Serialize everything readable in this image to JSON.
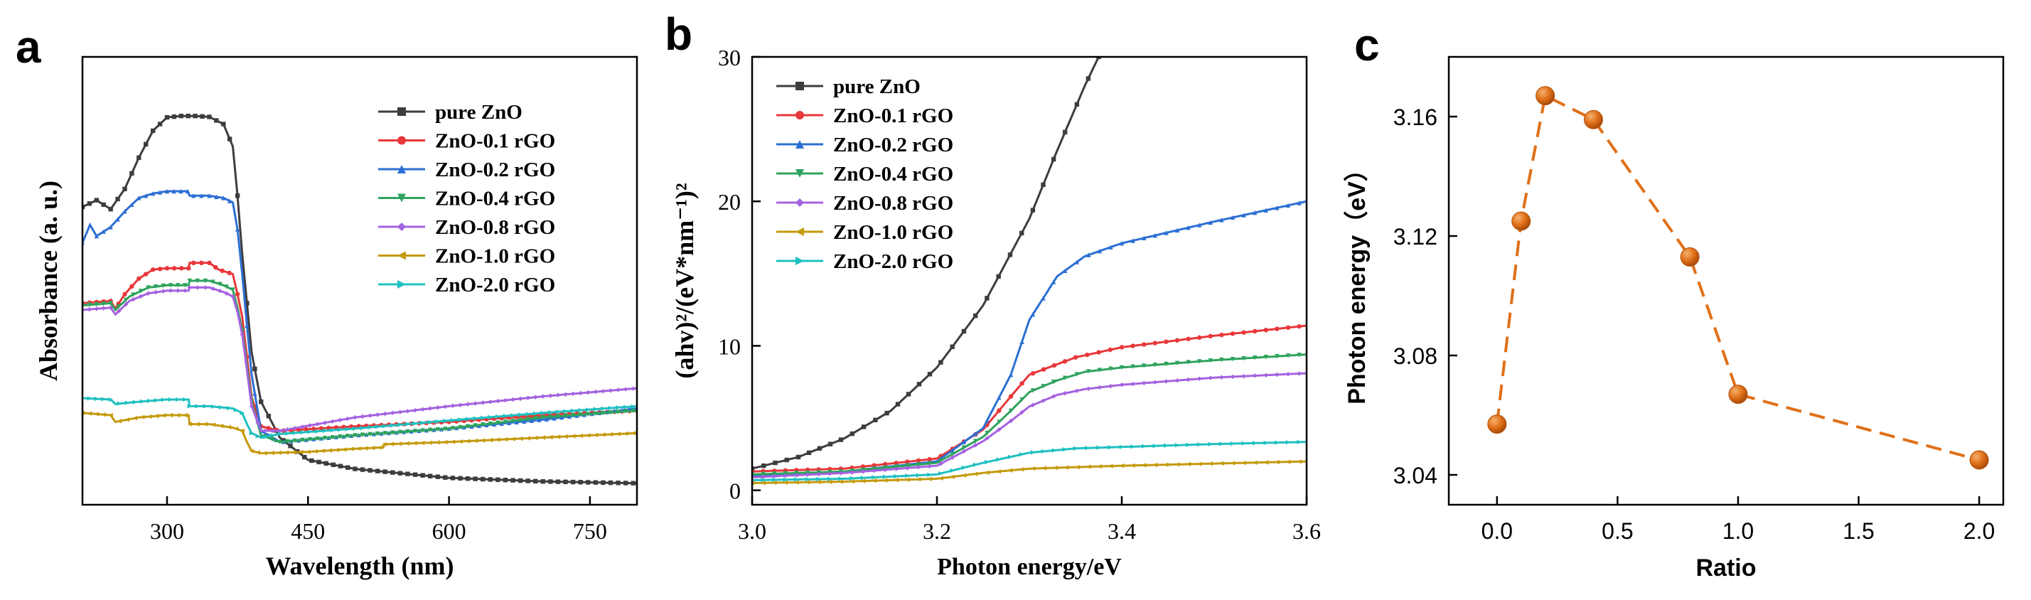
{
  "chart_data": [
    {
      "panel_label": "a",
      "type": "line",
      "xlabel": "Wavelength (nm)",
      "ylabel": "Absorbance (a. u.)",
      "xlim": [
        210,
        800
      ],
      "ylim": [
        0,
        1.0
      ],
      "x_ticks": [
        300,
        450,
        600,
        750
      ],
      "y_ticks_shown": false,
      "legend_position": "top-right",
      "series": [
        {
          "name": "pure ZnO",
          "color": "#3d3d3d",
          "marker": "square",
          "points": [
            [
              210,
              0.665
            ],
            [
              225,
              0.68
            ],
            [
              240,
              0.66
            ],
            [
              255,
              0.705
            ],
            [
              270,
              0.775
            ],
            [
              285,
              0.835
            ],
            [
              300,
              0.865
            ],
            [
              315,
              0.868
            ],
            [
              330,
              0.868
            ],
            [
              345,
              0.866
            ],
            [
              360,
              0.85
            ],
            [
              370,
              0.8
            ],
            [
              375,
              0.69
            ],
            [
              380,
              0.56
            ],
            [
              385,
              0.45
            ],
            [
              390,
              0.34
            ],
            [
              400,
              0.23
            ],
            [
              420,
              0.15
            ],
            [
              450,
              0.1
            ],
            [
              500,
              0.08
            ],
            [
              600,
              0.06
            ],
            [
              700,
              0.052
            ],
            [
              800,
              0.048
            ]
          ]
        },
        {
          "name": "ZnO-0.1 rGO",
          "color": "#e8373a",
          "marker": "circle",
          "points": [
            [
              210,
              0.45
            ],
            [
              240,
              0.455
            ],
            [
              245,
              0.438
            ],
            [
              255,
              0.47
            ],
            [
              270,
              0.505
            ],
            [
              285,
              0.525
            ],
            [
              300,
              0.528
            ],
            [
              323,
              0.528
            ],
            [
              324,
              0.54
            ],
            [
              345,
              0.54
            ],
            [
              355,
              0.525
            ],
            [
              370,
              0.515
            ],
            [
              375,
              0.47
            ],
            [
              380,
              0.42
            ],
            [
              385,
              0.33
            ],
            [
              390,
              0.24
            ],
            [
              400,
              0.175
            ],
            [
              420,
              0.165
            ],
            [
              500,
              0.175
            ],
            [
              600,
              0.185
            ],
            [
              700,
              0.2
            ],
            [
              800,
              0.21
            ]
          ]
        },
        {
          "name": "ZnO-0.2 rGO",
          "color": "#2c6fd4",
          "marker": "triangle-up",
          "points": [
            [
              210,
              0.585
            ],
            [
              218,
              0.625
            ],
            [
              225,
              0.6
            ],
            [
              240,
              0.62
            ],
            [
              255,
              0.655
            ],
            [
              270,
              0.685
            ],
            [
              285,
              0.695
            ],
            [
              300,
              0.7
            ],
            [
              322,
              0.7
            ],
            [
              324,
              0.69
            ],
            [
              345,
              0.69
            ],
            [
              360,
              0.685
            ],
            [
              370,
              0.675
            ],
            [
              375,
              0.615
            ],
            [
              380,
              0.515
            ],
            [
              385,
              0.4
            ],
            [
              390,
              0.29
            ],
            [
              400,
              0.165
            ],
            [
              420,
              0.14
            ],
            [
              500,
              0.155
            ],
            [
              600,
              0.17
            ],
            [
              700,
              0.19
            ],
            [
              800,
              0.215
            ]
          ]
        },
        {
          "name": "ZnO-0.4 rGO",
          "color": "#2ea35c",
          "marker": "triangle-down",
          "points": [
            [
              210,
              0.445
            ],
            [
              240,
              0.45
            ],
            [
              245,
              0.435
            ],
            [
              260,
              0.465
            ],
            [
              280,
              0.485
            ],
            [
              300,
              0.49
            ],
            [
              323,
              0.49
            ],
            [
              324,
              0.5
            ],
            [
              345,
              0.5
            ],
            [
              360,
              0.49
            ],
            [
              370,
              0.48
            ],
            [
              375,
              0.44
            ],
            [
              380,
              0.39
            ],
            [
              385,
              0.31
            ],
            [
              390,
              0.23
            ],
            [
              400,
              0.155
            ],
            [
              420,
              0.14
            ],
            [
              500,
              0.155
            ],
            [
              600,
              0.17
            ],
            [
              700,
              0.195
            ],
            [
              800,
              0.21
            ]
          ]
        },
        {
          "name": "ZnO-0.8 rGO",
          "color": "#a562e0",
          "marker": "diamond",
          "points": [
            [
              210,
              0.435
            ],
            [
              240,
              0.44
            ],
            [
              245,
              0.425
            ],
            [
              260,
              0.455
            ],
            [
              280,
              0.472
            ],
            [
              300,
              0.478
            ],
            [
              323,
              0.478
            ],
            [
              324,
              0.485
            ],
            [
              345,
              0.485
            ],
            [
              360,
              0.475
            ],
            [
              370,
              0.465
            ],
            [
              375,
              0.43
            ],
            [
              380,
              0.38
            ],
            [
              385,
              0.3
            ],
            [
              390,
              0.22
            ],
            [
              400,
              0.165
            ],
            [
              420,
              0.165
            ],
            [
              500,
              0.195
            ],
            [
              600,
              0.22
            ],
            [
              700,
              0.242
            ],
            [
              800,
              0.26
            ]
          ]
        },
        {
          "name": "ZnO-1.0 rGO",
          "color": "#c49a0c",
          "marker": "left-triangle",
          "points": [
            [
              210,
              0.205
            ],
            [
              240,
              0.2
            ],
            [
              245,
              0.185
            ],
            [
              270,
              0.195
            ],
            [
              300,
              0.2
            ],
            [
              323,
              0.2
            ],
            [
              324,
              0.18
            ],
            [
              345,
              0.18
            ],
            [
              370,
              0.172
            ],
            [
              380,
              0.165
            ],
            [
              385,
              0.14
            ],
            [
              390,
              0.12
            ],
            [
              400,
              0.115
            ],
            [
              450,
              0.118
            ],
            [
              500,
              0.125
            ],
            [
              530,
              0.128
            ],
            [
              531,
              0.135
            ],
            [
              600,
              0.14
            ],
            [
              700,
              0.15
            ],
            [
              800,
              0.16
            ]
          ]
        },
        {
          "name": "ZnO-2.0 rGO",
          "color": "#1fc0c0",
          "marker": "right-triangle",
          "points": [
            [
              210,
              0.238
            ],
            [
              240,
              0.235
            ],
            [
              245,
              0.225
            ],
            [
              270,
              0.23
            ],
            [
              300,
              0.235
            ],
            [
              323,
              0.235
            ],
            [
              324,
              0.22
            ],
            [
              345,
              0.22
            ],
            [
              370,
              0.215
            ],
            [
              380,
              0.205
            ],
            [
              385,
              0.18
            ],
            [
              390,
              0.16
            ],
            [
              400,
              0.15
            ],
            [
              420,
              0.158
            ],
            [
              500,
              0.17
            ],
            [
              600,
              0.188
            ],
            [
              700,
              0.205
            ],
            [
              800,
              0.22
            ]
          ]
        }
      ]
    },
    {
      "panel_label": "b",
      "type": "line",
      "xlabel": "Photon energy/eV",
      "ylabel": "(ahv)²/(eV*nm⁻¹)²",
      "xlim": [
        3.0,
        3.6
      ],
      "ylim": [
        -1,
        30
      ],
      "x_ticks": [
        3.0,
        3.2,
        3.4,
        3.6
      ],
      "x_tick_labels": [
        "3.0",
        "3.2",
        "3.4",
        "3.6"
      ],
      "y_ticks": [
        0,
        10,
        20,
        30
      ],
      "legend_position": "top-left",
      "series": [
        {
          "name": "pure ZnO",
          "color": "#3d3d3d",
          "marker": "square",
          "points": [
            [
              3.0,
              1.5
            ],
            [
              3.05,
              2.3
            ],
            [
              3.1,
              3.6
            ],
            [
              3.15,
              5.5
            ],
            [
              3.2,
              8.5
            ],
            [
              3.25,
              12.8
            ],
            [
              3.3,
              18.8
            ],
            [
              3.33,
              23.5
            ],
            [
              3.36,
              28.0
            ],
            [
              3.375,
              30.0
            ]
          ]
        },
        {
          "name": "ZnO-0.1 rGO",
          "color": "#e8373a",
          "marker": "circle",
          "points": [
            [
              3.0,
              1.3
            ],
            [
              3.1,
              1.5
            ],
            [
              3.2,
              2.2
            ],
            [
              3.25,
              4.2
            ],
            [
              3.28,
              6.5
            ],
            [
              3.3,
              8.0
            ],
            [
              3.35,
              9.2
            ],
            [
              3.4,
              9.9
            ],
            [
              3.5,
              10.7
            ],
            [
              3.6,
              11.4
            ]
          ]
        },
        {
          "name": "ZnO-0.2 rGO",
          "color": "#2c6fd4",
          "marker": "triangle-up",
          "points": [
            [
              3.0,
              1.0
            ],
            [
              3.1,
              1.3
            ],
            [
              3.2,
              2.0
            ],
            [
              3.25,
              4.3
            ],
            [
              3.28,
              8.0
            ],
            [
              3.3,
              11.8
            ],
            [
              3.33,
              14.8
            ],
            [
              3.36,
              16.2
            ],
            [
              3.4,
              17.1
            ],
            [
              3.5,
              18.6
            ],
            [
              3.6,
              20.0
            ]
          ]
        },
        {
          "name": "ZnO-0.4 rGO",
          "color": "#2ea35c",
          "marker": "triangle-down",
          "points": [
            [
              3.0,
              1.1
            ],
            [
              3.1,
              1.3
            ],
            [
              3.2,
              1.9
            ],
            [
              3.25,
              3.7
            ],
            [
              3.28,
              5.5
            ],
            [
              3.3,
              6.8
            ],
            [
              3.33,
              7.6
            ],
            [
              3.36,
              8.2
            ],
            [
              3.4,
              8.5
            ],
            [
              3.5,
              9.0
            ],
            [
              3.6,
              9.4
            ]
          ]
        },
        {
          "name": "ZnO-0.8 rGO",
          "color": "#a562e0",
          "marker": "diamond",
          "points": [
            [
              3.0,
              0.9
            ],
            [
              3.1,
              1.2
            ],
            [
              3.2,
              1.7
            ],
            [
              3.25,
              3.4
            ],
            [
              3.28,
              4.8
            ],
            [
              3.3,
              5.8
            ],
            [
              3.33,
              6.6
            ],
            [
              3.36,
              7.0
            ],
            [
              3.4,
              7.3
            ],
            [
              3.5,
              7.8
            ],
            [
              3.6,
              8.1
            ]
          ]
        },
        {
          "name": "ZnO-1.0 rGO",
          "color": "#c49a0c",
          "marker": "left-triangle",
          "points": [
            [
              3.0,
              0.5
            ],
            [
              3.1,
              0.6
            ],
            [
              3.2,
              0.8
            ],
            [
              3.25,
              1.2
            ],
            [
              3.3,
              1.5
            ],
            [
              3.4,
              1.7
            ],
            [
              3.5,
              1.85
            ],
            [
              3.6,
              2.0
            ]
          ]
        },
        {
          "name": "ZnO-2.0 rGO",
          "color": "#1fc0c0",
          "marker": "right-triangle",
          "points": [
            [
              3.0,
              0.7
            ],
            [
              3.1,
              0.8
            ],
            [
              3.2,
              1.1
            ],
            [
              3.25,
              1.9
            ],
            [
              3.3,
              2.6
            ],
            [
              3.35,
              2.9
            ],
            [
              3.4,
              3.0
            ],
            [
              3.5,
              3.2
            ],
            [
              3.6,
              3.35
            ]
          ]
        }
      ]
    },
    {
      "panel_label": "c",
      "type": "scatter",
      "xlabel": "Ratio",
      "ylabel": "Photon energy（eV）",
      "xlim": [
        -0.2,
        2.1
      ],
      "ylim": [
        3.03,
        3.18
      ],
      "x_ticks": [
        0.0,
        0.5,
        1.0,
        1.5,
        2.0
      ],
      "x_tick_labels": [
        "0.0",
        "0.5",
        "1.0",
        "1.5",
        "2.0"
      ],
      "y_ticks": [
        3.04,
        3.08,
        3.12,
        3.16
      ],
      "y_tick_labels": [
        "3.04",
        "3.08",
        "3.12",
        "3.16"
      ],
      "color": "#e07018",
      "connector": "dashed",
      "x": [
        0.0,
        0.1,
        0.2,
        0.4,
        0.8,
        1.0,
        2.0
      ],
      "y": [
        3.057,
        3.125,
        3.167,
        3.159,
        3.113,
        3.067,
        3.045
      ]
    }
  ]
}
